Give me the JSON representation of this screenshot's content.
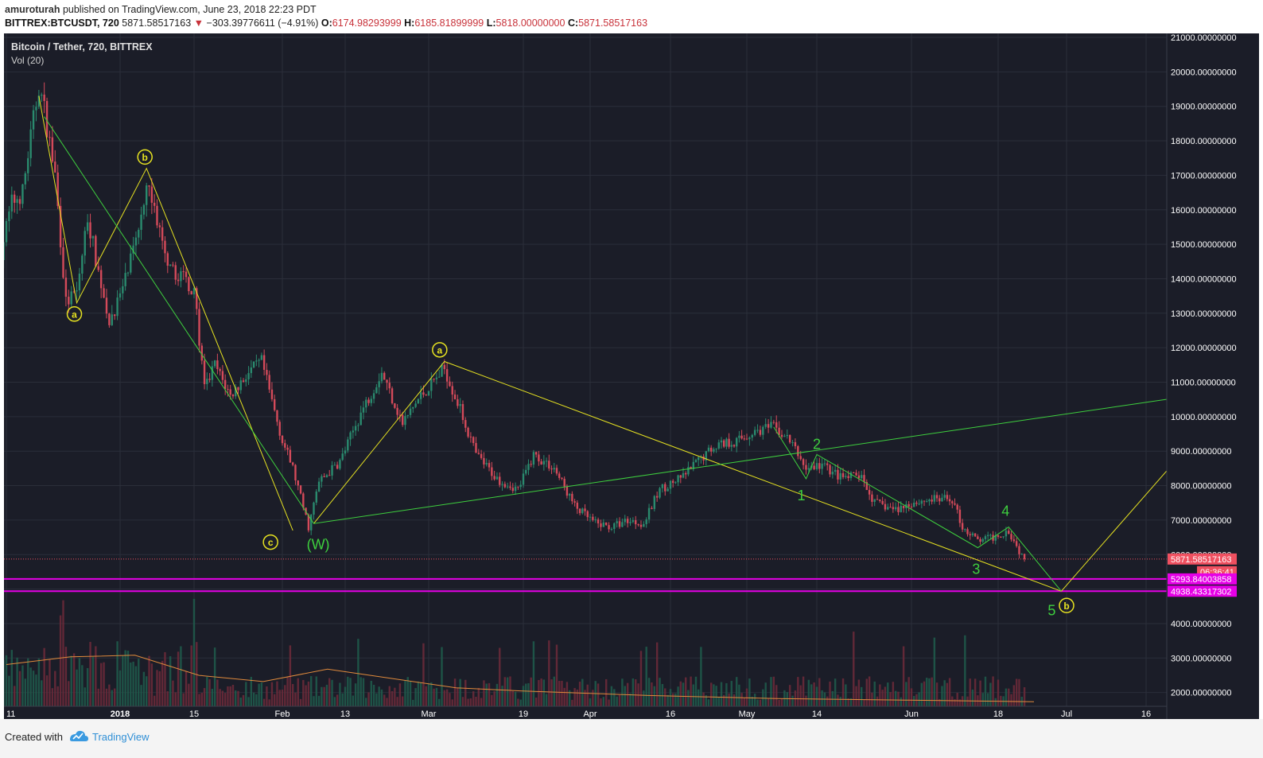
{
  "header": {
    "user": "amuroturah",
    "published_text": "published on TradingView.com, June 23, 2018 22:23 PDT",
    "symbol": "BITTREX:BTCUSDT, 720",
    "last": "5871.58517163",
    "change_arrow": "▼",
    "change": "−303.39776611 (−4.91%)",
    "o_label": "O:",
    "o_value": "6174.98293999",
    "h_label": "H:",
    "h_value": "6185.81899999",
    "l_label": "L:",
    "l_value": "5818.00000000",
    "c_label": "C:",
    "c_value": "5871.58517163"
  },
  "footer": {
    "created_with": "Created with",
    "brand": "TradingView"
  },
  "colors": {
    "background": "#1b1d28",
    "up": "#2a8a6e",
    "down": "#d44a5a",
    "yellow": "#e6e221",
    "green_line": "#3ecf3e",
    "magenta": "#e600e6",
    "volume_ma": "#e08a3c",
    "price_tag": "#f05060",
    "axis_text": "#ffffff"
  },
  "chart_data": {
    "type": "candlestick",
    "title": "Bitcoin / Tether, 720, BITTREX",
    "indicator_label": "Vol (20)",
    "interval": "720",
    "x_tick_labels": [
      "11",
      "2018",
      "15",
      "Feb",
      "13",
      "Mar",
      "19",
      "Apr",
      "16",
      "May",
      "14",
      "Jun",
      "18",
      "Jul",
      "16"
    ],
    "x_tick_dates": [
      "2017-12-11",
      "2018-01-01",
      "2018-01-15",
      "2018-02-01",
      "2018-02-13",
      "2018-03-01",
      "2018-03-19",
      "2018-04-01",
      "2018-04-16",
      "2018-05-01",
      "2018-05-14",
      "2018-06-01",
      "2018-06-18",
      "2018-07-01",
      "2018-07-16"
    ],
    "y_tick_labels": [
      "21000.00000000",
      "20000.00000000",
      "19000.00000000",
      "18000.00000000",
      "17000.00000000",
      "16000.00000000",
      "15000.00000000",
      "14000.00000000",
      "13000.00000000",
      "12000.00000000",
      "11000.00000000",
      "10000.00000000",
      "9000.00000000",
      "8000.00000000",
      "7000.00000000",
      "6000.00000000",
      "5000.00000000",
      "4000.00000000",
      "3000.00000000",
      "2000.00000000"
    ],
    "ylim": [
      1700,
      21150
    ],
    "scale": "linear",
    "grid": true,
    "price_path": [
      [
        "2017-12-10",
        14800
      ],
      [
        "2017-12-12",
        16200
      ],
      [
        "2017-12-14",
        16500
      ],
      [
        "2017-12-15",
        17600
      ],
      [
        "2017-12-17",
        19600
      ],
      [
        "2017-12-18",
        18900
      ],
      [
        "2017-12-20",
        17000
      ],
      [
        "2017-12-22",
        13300
      ],
      [
        "2017-12-24",
        13600
      ],
      [
        "2017-12-26",
        15800
      ],
      [
        "2017-12-28",
        14200
      ],
      [
        "2017-12-30",
        12800
      ],
      [
        "2018-01-01",
        13500
      ],
      [
        "2018-01-04",
        15000
      ],
      [
        "2018-01-06",
        16900
      ],
      [
        "2018-01-08",
        15700
      ],
      [
        "2018-01-10",
        14200
      ],
      [
        "2018-01-13",
        14100
      ],
      [
        "2018-01-15",
        13600
      ],
      [
        "2018-01-17",
        10800
      ],
      [
        "2018-01-19",
        11500
      ],
      [
        "2018-01-22",
        10600
      ],
      [
        "2018-01-25",
        11200
      ],
      [
        "2018-01-28",
        11600
      ],
      [
        "2018-02-01",
        9300
      ],
      [
        "2018-02-03",
        8500
      ],
      [
        "2018-02-06",
        6800
      ],
      [
        "2018-02-08",
        8100
      ],
      [
        "2018-02-12",
        8700
      ],
      [
        "2018-02-16",
        10100
      ],
      [
        "2018-02-20",
        11300
      ],
      [
        "2018-02-24",
        9800
      ],
      [
        "2018-02-27",
        10500
      ],
      [
        "2018-03-04",
        11400
      ],
      [
        "2018-03-07",
        10200
      ],
      [
        "2018-03-10",
        8900
      ],
      [
        "2018-03-14",
        8200
      ],
      [
        "2018-03-18",
        7900
      ],
      [
        "2018-03-21",
        8900
      ],
      [
        "2018-03-25",
        8500
      ],
      [
        "2018-03-29",
        7400
      ],
      [
        "2018-04-02",
        6900
      ],
      [
        "2018-04-05",
        6800
      ],
      [
        "2018-04-08",
        7000
      ],
      [
        "2018-04-11",
        6900
      ],
      [
        "2018-04-14",
        7900
      ],
      [
        "2018-04-18",
        8200
      ],
      [
        "2018-04-22",
        8800
      ],
      [
        "2018-04-25",
        9200
      ],
      [
        "2018-04-29",
        9300
      ],
      [
        "2018-05-03",
        9600
      ],
      [
        "2018-05-06",
        9700
      ],
      [
        "2018-05-09",
        9300
      ],
      [
        "2018-05-12",
        8500
      ],
      [
        "2018-05-15",
        8600
      ],
      [
        "2018-05-19",
        8200
      ],
      [
        "2018-05-22",
        8300
      ],
      [
        "2018-05-25",
        7500
      ],
      [
        "2018-05-29",
        7300
      ],
      [
        "2018-06-01",
        7500
      ],
      [
        "2018-06-05",
        7600
      ],
      [
        "2018-06-09",
        7600
      ],
      [
        "2018-06-11",
        6800
      ],
      [
        "2018-06-14",
        6400
      ],
      [
        "2018-06-17",
        6500
      ],
      [
        "2018-06-20",
        6700
      ],
      [
        "2018-06-22",
        6100
      ],
      [
        "2018-06-23",
        5872
      ]
    ],
    "last_price": 5871.58517163,
    "price_tag": "5871.58517163",
    "countdown": "06:36:41",
    "support_levels": [
      {
        "value": 5293.84003858,
        "label": "5293.84003858",
        "color": "#e600e6"
      },
      {
        "value": 4938.43317302,
        "label": "4938.43317302",
        "color": "#e600e6"
      }
    ],
    "annotations": [
      {
        "text": "a",
        "date": "2017-12-24",
        "price": 13300,
        "style": "circle",
        "color": "#e6e221"
      },
      {
        "text": "b",
        "date": "2018-01-06",
        "price": 17000,
        "style": "circle",
        "color": "#e6e221"
      },
      {
        "text": "c",
        "date": "2018-02-03",
        "price": 6800,
        "style": "circle",
        "color": "#e6e221"
      },
      {
        "text": "(W)",
        "date": "2018-02-08",
        "price": 6800,
        "style": "plain",
        "color": "#3ecf3e"
      },
      {
        "text": "a",
        "date": "2018-03-04",
        "price": 11500,
        "style": "circle",
        "color": "#e6e221"
      },
      {
        "text": "1",
        "date": "2018-05-12",
        "price": 8200,
        "style": "plain",
        "color": "#3ecf3e"
      },
      {
        "text": "2",
        "date": "2018-05-14",
        "price": 8900,
        "style": "plain",
        "color": "#3ecf3e"
      },
      {
        "text": "3",
        "date": "2018-06-14",
        "price": 6200,
        "style": "plain",
        "color": "#3ecf3e"
      },
      {
        "text": "4",
        "date": "2018-06-20",
        "price": 6800,
        "style": "plain",
        "color": "#3ecf3e"
      },
      {
        "text": "5",
        "date": "2018-06-30",
        "price": 4938,
        "style": "plain",
        "color": "#3ecf3e"
      },
      {
        "text": "b",
        "date": "2018-07-01",
        "price": 4938,
        "style": "circle",
        "color": "#e6e221"
      }
    ],
    "wave_lines": [
      {
        "color": "#e6e221",
        "points": [
          [
            "2017-12-17",
            19300
          ],
          [
            "2017-12-24",
            13300
          ],
          [
            "2018-01-06",
            17200
          ],
          [
            "2018-02-03",
            6700
          ]
        ]
      },
      {
        "color": "#e6e221",
        "points": [
          [
            "2018-02-07",
            6900
          ],
          [
            "2018-03-04",
            11600
          ],
          [
            "2018-06-30",
            4938
          ],
          [
            "2018-07-22",
            8800
          ]
        ]
      },
      {
        "color": "#3ecf3e",
        "points": [
          [
            "2017-12-18",
            18700
          ],
          [
            "2018-02-07",
            6900
          ],
          [
            "2018-07-22",
            10550
          ]
        ]
      },
      {
        "color": "#3ecf3e",
        "points": [
          [
            "2018-05-06",
            9700
          ],
          [
            "2018-05-12",
            8200
          ],
          [
            "2018-05-14",
            8900
          ],
          [
            "2018-06-14",
            6200
          ],
          [
            "2018-06-20",
            6800
          ],
          [
            "2018-06-30",
            4938
          ]
        ]
      }
    ],
    "volume": {
      "label": "Vol (20)",
      "ma_path": [
        [
          0,
          3050
        ],
        [
          10,
          3300
        ],
        [
          20,
          3350
        ],
        [
          30,
          2700
        ],
        [
          40,
          2500
        ],
        [
          50,
          2900
        ],
        [
          60,
          2600
        ],
        [
          70,
          2300
        ],
        [
          80,
          2200
        ],
        [
          100,
          2050
        ],
        [
          120,
          1950
        ],
        [
          140,
          1900
        ],
        [
          160,
          1850
        ]
      ]
    }
  }
}
